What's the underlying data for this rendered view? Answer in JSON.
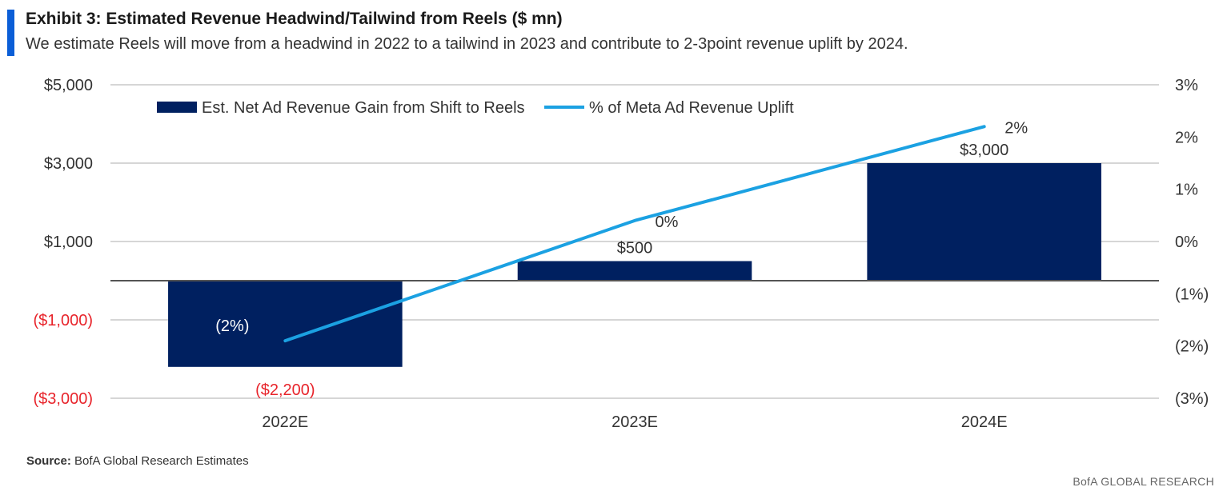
{
  "header": {
    "title": "Exhibit 3: Estimated Revenue Headwind/Tailwind from Reels ($ mn)",
    "subtitle": "We estimate Reels will move from a headwind in 2022 to a tailwind in 2023 and contribute to 2-3point revenue uplift by 2024."
  },
  "footer": {
    "source_label": "Source:",
    "source_text": "BofA Global Research Estimates",
    "brand": "BofA GLOBAL RESEARCH"
  },
  "colors": {
    "bar": "#002060",
    "line": "#1ba1e2",
    "negative_text": "#e8242b",
    "grid": "#c8c8c8",
    "zero_line": "#555555",
    "accent": "#0b5ed7"
  },
  "chart_data": {
    "type": "bar",
    "categories": [
      "2022E",
      "2023E",
      "2024E"
    ],
    "series": [
      {
        "name": "Est. Net Ad Revenue Gain from Shift to Reels",
        "type": "bar",
        "axis": "left",
        "values": [
          -2200,
          500,
          3000
        ],
        "labels": [
          "($2,200)",
          "$500",
          "$3,000"
        ]
      },
      {
        "name": "% of Meta Ad Revenue Uplift",
        "type": "line",
        "axis": "right",
        "values": [
          -1.9,
          0.4,
          2.2
        ],
        "labels": [
          "(2%)",
          "0%",
          "2%"
        ]
      }
    ],
    "left_axis": {
      "ylim": [
        -3000,
        5000
      ],
      "ticks": [
        5000,
        3000,
        1000,
        -1000,
        -3000
      ],
      "tick_labels": [
        "$5,000",
        "$3,000",
        "$1,000",
        "($1,000)",
        "($3,000)"
      ]
    },
    "right_axis": {
      "ylim": [
        -3,
        3
      ],
      "ticks": [
        3,
        2,
        1,
        0,
        -1,
        -2,
        -3
      ],
      "tick_labels": [
        "3%",
        "2%",
        "1%",
        "0%",
        "(1%)",
        "(2%)",
        "(3%)"
      ]
    },
    "grid": true,
    "legend": "top-left"
  }
}
